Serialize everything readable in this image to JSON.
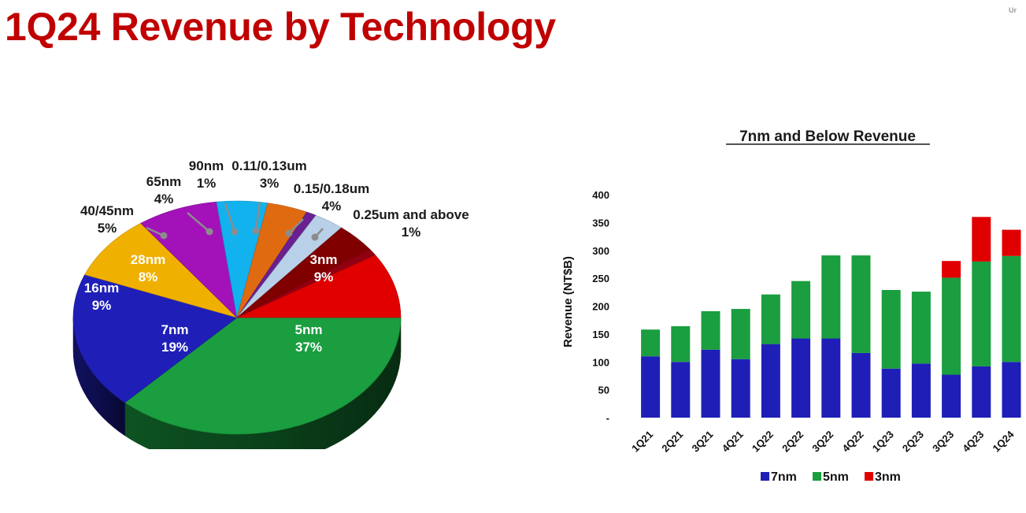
{
  "page": {
    "title": "1Q24 Revenue by Technology",
    "corner_mark": "Ur"
  },
  "chart_data": [
    {
      "type": "pie",
      "title": "",
      "slices": [
        {
          "label": "5nm",
          "value": 37,
          "pct_label": "37%",
          "color": "#1a9e3f"
        },
        {
          "label": "7nm",
          "value": 19,
          "pct_label": "19%",
          "color": "#1f1fb8"
        },
        {
          "label": "16nm",
          "value": 9,
          "pct_label": "9%",
          "color": "#f0b000"
        },
        {
          "label": "28nm",
          "value": 8,
          "pct_label": "8%",
          "color": "#a212b8"
        },
        {
          "label": "40/45nm",
          "value": 5,
          "pct_label": "5%",
          "color": "#11b2ee"
        },
        {
          "label": "65nm",
          "value": 4,
          "pct_label": "4%",
          "color": "#e06a10"
        },
        {
          "label": "90nm",
          "value": 1,
          "pct_label": "1%",
          "color": "#6a2090"
        },
        {
          "label": "0.11/0.13um",
          "value": 3,
          "pct_label": "3%",
          "color": "#b8d0e8"
        },
        {
          "label": "0.15/0.18um",
          "value": 4,
          "pct_label": "4%",
          "color": "#800000"
        },
        {
          "label": "0.25um and above",
          "value": 1,
          "pct_label": "1%",
          "color": "#900010"
        },
        {
          "label": "3nm",
          "value": 9,
          "pct_label": "9%",
          "color": "#e00000"
        }
      ]
    },
    {
      "type": "bar",
      "stacked": true,
      "title": "7nm and Below Revenue",
      "xlabel": "",
      "ylabel": "Revenue (NT$B)",
      "ylim": [
        0,
        400
      ],
      "yticks": [
        "-",
        "50",
        "100",
        "150",
        "200",
        "250",
        "300",
        "350",
        "400"
      ],
      "categories": [
        "1Q21",
        "2Q21",
        "3Q21",
        "4Q21",
        "1Q22",
        "2Q22",
        "3Q22",
        "4Q22",
        "1Q23",
        "2Q23",
        "3Q23",
        "4Q23",
        "1Q24"
      ],
      "series": [
        {
          "name": "7nm",
          "color": "#1f1fb8",
          "values": [
            110,
            100,
            122,
            105,
            132,
            142,
            142,
            116,
            88,
            97,
            77,
            92,
            100
          ]
        },
        {
          "name": "5nm",
          "color": "#1a9e3f",
          "values": [
            48,
            64,
            69,
            90,
            89,
            103,
            149,
            175,
            141,
            129,
            174,
            188,
            190
          ]
        },
        {
          "name": "3nm",
          "color": "#e00000",
          "values": [
            0,
            0,
            0,
            0,
            0,
            0,
            0,
            0,
            0,
            0,
            30,
            80,
            47
          ]
        }
      ],
      "legend": "bottom",
      "grid": false
    }
  ]
}
